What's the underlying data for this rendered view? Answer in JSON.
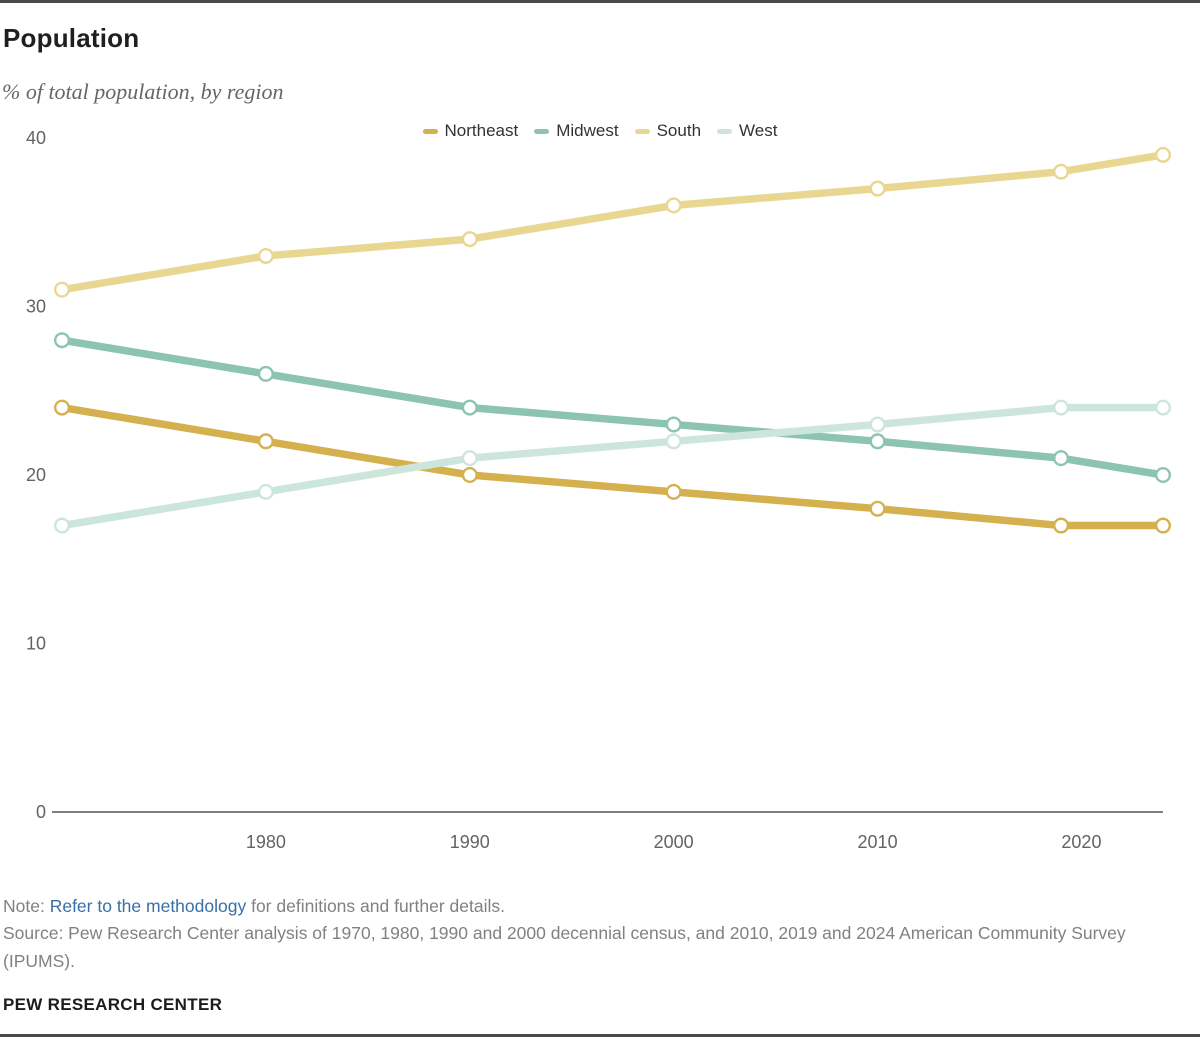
{
  "header": {
    "title": "Population",
    "subtitle": "% of total population, by region"
  },
  "chart_data": {
    "type": "line",
    "title": "Population",
    "subtitle": "% of total population, by region",
    "x": [
      1970,
      1980,
      1990,
      2000,
      2010,
      2019,
      2024
    ],
    "series": [
      {
        "name": "Northeast",
        "color": "#d4b14e",
        "values": [
          24,
          22,
          20,
          19,
          18,
          17,
          17
        ]
      },
      {
        "name": "Midwest",
        "color": "#8cc4b0",
        "values": [
          28,
          26,
          24,
          23,
          22,
          21,
          20
        ]
      },
      {
        "name": "South",
        "color": "#e9d690",
        "values": [
          31,
          33,
          34,
          36,
          37,
          38,
          39
        ]
      },
      {
        "name": "West",
        "color": "#cde6db",
        "values": [
          17,
          19,
          21,
          22,
          23,
          24,
          24
        ]
      }
    ],
    "xticks": [
      1980,
      1990,
      2000,
      2010,
      2020
    ],
    "yticks": [
      0,
      10,
      20,
      30,
      40
    ],
    "xlim": [
      1970,
      2024
    ],
    "ylim": [
      0,
      40
    ],
    "grid": false,
    "legend_position": "top-center",
    "axis_color": "#7f7f7f",
    "tick_label_color": "#636363",
    "marker_fill": "#ffffff"
  },
  "note": {
    "prefix": "Note: ",
    "link_text": "Refer to the methodology",
    "suffix": " for definitions and further details.",
    "link_color": "#3a6fa5"
  },
  "source": {
    "text": "Source: Pew Research Center analysis of 1970, 1980, 1990 and 2000 decennial census, and 2010, 2019 and 2024 American Community Survey (IPUMS)."
  },
  "footer": {
    "brand": "PEW RESEARCH CENTER"
  }
}
